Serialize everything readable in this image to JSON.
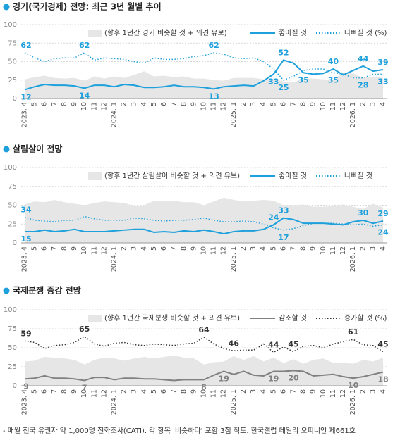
{
  "chart_data": [
    {
      "type": "line",
      "title": "경기(국가경제) 전망:  최근 3년 월별 추이",
      "categories": [
        "2023. 4",
        "5",
        "6",
        "7",
        "8",
        "9",
        "10",
        "11",
        "12",
        "2024. 1",
        "2",
        "3",
        "4",
        "5",
        "6",
        "7",
        "8",
        "9",
        "10",
        "11",
        "12",
        "2025. 1",
        "2",
        "3",
        "4",
        "5",
        "6",
        "7",
        "8",
        "9",
        "10",
        "11",
        "12",
        "2026. 1",
        "2",
        "3",
        "4"
      ],
      "ylim": [
        0,
        100
      ],
      "yticks": [
        0,
        25,
        50,
        75,
        100
      ],
      "grid": true,
      "area": {
        "name": "(향후 1년간 경기 비슷할 것 + 의견 유보)",
        "color": "#e6e6e6",
        "values": [
          26,
          29,
          31,
          28,
          27,
          28,
          24,
          30,
          27,
          30,
          28,
          32,
          37,
          30,
          31,
          29,
          30,
          27,
          27,
          25,
          24,
          28,
          28,
          28,
          26,
          27,
          23,
          22,
          27,
          27,
          26,
          25,
          35,
          34,
          28,
          30,
          28
        ]
      },
      "series": [
        {
          "name": "좋아질 것",
          "color": "#1ea0dc",
          "style": "solid",
          "labeled": [
            0,
            6,
            19,
            25,
            26,
            28,
            31,
            34,
            36
          ],
          "values": [
            12,
            16,
            19,
            18,
            18,
            17,
            14,
            18,
            18,
            16,
            19,
            18,
            15,
            15,
            16,
            18,
            16,
            16,
            15,
            13,
            16,
            17,
            18,
            17,
            24,
            33,
            52,
            48,
            35,
            33,
            34,
            40,
            32,
            38,
            44,
            37,
            39
          ]
        },
        {
          "name": "나빠질 것 (%)",
          "color": "#1ea0dc",
          "style": "dotted",
          "labeled": [
            0,
            6,
            19,
            26,
            31,
            34,
            36
          ],
          "values": [
            62,
            55,
            50,
            54,
            55,
            55,
            62,
            52,
            55,
            54,
            53,
            50,
            48,
            55,
            53,
            53,
            54,
            57,
            58,
            62,
            60,
            55,
            54,
            55,
            50,
            40,
            25,
            30,
            38,
            40,
            40,
            35,
            33,
            28,
            28,
            33,
            33
          ]
        }
      ]
    },
    {
      "type": "line",
      "title": "살림살이 전망",
      "categories": [
        "2023. 4",
        "5",
        "6",
        "7",
        "8",
        "9",
        "10",
        "11",
        "12",
        "2024. 1",
        "2",
        "3",
        "4",
        "5",
        "6",
        "7",
        "8",
        "9",
        "10",
        "11",
        "12",
        "2025. 1",
        "2",
        "3",
        "4",
        "5",
        "6",
        "7",
        "8",
        "9",
        "10",
        "11",
        "12",
        "2026. 1",
        "2",
        "3",
        "4"
      ],
      "ylim": [
        0,
        100
      ],
      "yticks": [
        0,
        25,
        50,
        75,
        100
      ],
      "grid": true,
      "area": {
        "name": "(향후 1년간 살림살이 비슷할 것 + 의견 유보)",
        "color": "#e6e6e6",
        "values": [
          51,
          55,
          54,
          57,
          54,
          52,
          50,
          53,
          55,
          54,
          53,
          49,
          50,
          56,
          56,
          56,
          54,
          54,
          50,
          55,
          60,
          57,
          55,
          56,
          57,
          56,
          50,
          50,
          51,
          48,
          48,
          49,
          51,
          48,
          45,
          52,
          47
        ]
      },
      "series": [
        {
          "name": "좋아질 것",
          "color": "#1ea0dc",
          "style": "solid",
          "labeled": [
            0,
            25,
            26,
            34,
            36
          ],
          "values": [
            15,
            15,
            17,
            15,
            16,
            18,
            15,
            15,
            15,
            16,
            17,
            18,
            18,
            14,
            15,
            14,
            16,
            15,
            17,
            15,
            12,
            15,
            16,
            16,
            18,
            24,
            33,
            31,
            26,
            26,
            26,
            25,
            24,
            28,
            30,
            26,
            29
          ]
        },
        {
          "name": "나빠질 것",
          "color": "#1ea0dc",
          "style": "dotted",
          "labeled": [
            0,
            26,
            36
          ],
          "values": [
            34,
            30,
            29,
            28,
            30,
            30,
            35,
            32,
            30,
            30,
            30,
            33,
            32,
            30,
            29,
            30,
            30,
            31,
            33,
            30,
            28,
            28,
            29,
            28,
            25,
            20,
            17,
            19,
            23,
            26,
            26,
            26,
            25,
            24,
            25,
            22,
            24
          ]
        }
      ]
    },
    {
      "type": "line",
      "title": "국제분쟁 증감 전망",
      "categories": [
        "2023. 4",
        "5",
        "6",
        "7",
        "8",
        "9",
        "10",
        "11",
        "12",
        "2024. 1",
        "2",
        "3",
        "4",
        "5",
        "6",
        "7",
        "8",
        "9",
        "10",
        "11",
        "12",
        "2025. 1",
        "2",
        "3",
        "4",
        "5",
        "6",
        "7",
        "8",
        "9",
        "10",
        "11",
        "12",
        "2026. 1",
        "2",
        "3",
        "4"
      ],
      "ylim": [
        0,
        100
      ],
      "yticks": [
        0,
        25,
        50,
        75,
        100
      ],
      "grid": true,
      "area": {
        "name": "(향후 1년간 국제분쟁 비슷할 것 + 의견 유보)",
        "color": "#e6e6e6",
        "values": [
          32,
          33,
          38,
          37,
          36,
          34,
          28,
          34,
          37,
          36,
          33,
          36,
          38,
          36,
          38,
          40,
          37,
          36,
          28,
          31,
          32,
          39,
          34,
          39,
          32,
          37,
          30,
          35,
          29,
          34,
          36,
          30,
          30,
          29,
          34,
          32,
          37
        ]
      },
      "series": [
        {
          "name": "감소할 것",
          "color": "#808080",
          "style": "solid",
          "labeled": [
            0,
            6,
            18,
            20,
            25,
            27,
            33,
            36
          ],
          "values": [
            9,
            10,
            13,
            10,
            10,
            9,
            7,
            11,
            11,
            8,
            10,
            10,
            9,
            9,
            8,
            7,
            8,
            8,
            8,
            14,
            19,
            15,
            19,
            14,
            13,
            19,
            19,
            20,
            19,
            13,
            14,
            15,
            12,
            10,
            12,
            15,
            18
          ]
        },
        {
          "name": "증가할 것 (%)",
          "color": "#333333",
          "style": "dotted",
          "labeled": [
            0,
            6,
            18,
            21,
            25,
            27,
            33,
            36
          ],
          "values": [
            59,
            57,
            49,
            53,
            54,
            57,
            65,
            55,
            52,
            56,
            57,
            54,
            53,
            55,
            54,
            53,
            55,
            56,
            64,
            55,
            49,
            46,
            47,
            47,
            55,
            44,
            51,
            45,
            52,
            53,
            50,
            55,
            58,
            61,
            54,
            53,
            45
          ]
        }
      ]
    }
  ],
  "footnote": "- 매월 전국 유권자 약 1,000명 전화조사(CATI). 각 항목 '비슷하다' 포함 3점 척도. 한국갤럽 데일리 오피니언 제661호"
}
